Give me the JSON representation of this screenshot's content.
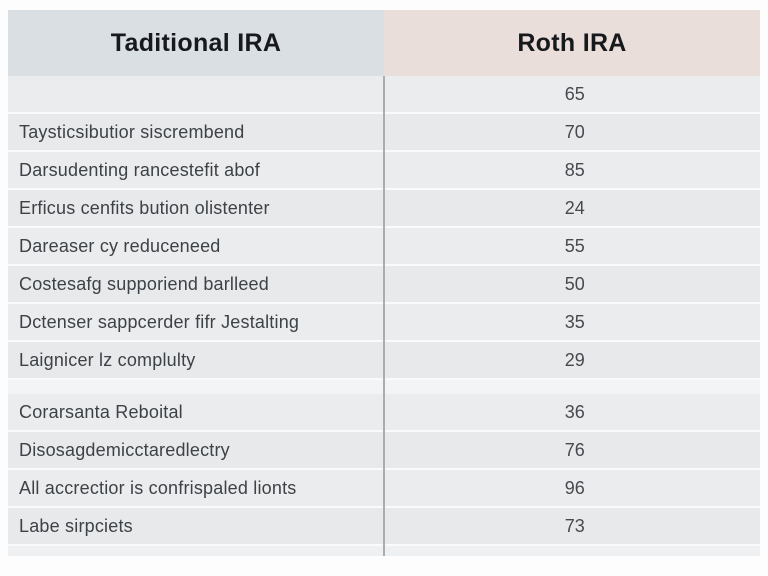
{
  "table": {
    "columns": [
      {
        "id": "traditional-ira",
        "label": "Taditional IRA"
      },
      {
        "id": "roth-ira",
        "label": "Roth IRA"
      }
    ],
    "sections": [
      {
        "rows": [
          {
            "label": "",
            "value": "65"
          },
          {
            "label": "Taysticsibutior siscrembend",
            "value": "70"
          },
          {
            "label": "Darsudenting rancestefit abof",
            "value": "85"
          },
          {
            "label": "Erficus cenfits bution olistenter",
            "value": "24"
          },
          {
            "label": "Dareaser cy reduceneed",
            "value": "55"
          },
          {
            "label": "Costesafg supporiend barlleed",
            "value": "50"
          },
          {
            "label": "Dctenser sappcerder fifr Jestalting",
            "value": "35"
          },
          {
            "label": "Laignicer lz complulty",
            "value": "29"
          }
        ]
      },
      {
        "rows": [
          {
            "label": "Corarsanta Reboital",
            "value": "36"
          },
          {
            "label": "Disosagdemicctaredlectry",
            "value": "76"
          },
          {
            "label": "All accrectior is confrispaled lionts",
            "value": "96"
          },
          {
            "label": "Labe sirpciets",
            "value": "73"
          }
        ]
      }
    ]
  },
  "colors": {
    "header_left_bg": "#d9dfe3",
    "header_right_bg": "#e9deda",
    "header_text": "#17191d",
    "row_bg_a": "#ebecee",
    "row_bg_b": "#e8e9eb",
    "row_separator": "#f9fafb",
    "section_gap_bg": "#f3f4f6",
    "footer_strip_bg": "#eef0f2",
    "column_divider": "#aaadb0",
    "label_text": "#3d4247",
    "value_text": "#464a4f"
  }
}
